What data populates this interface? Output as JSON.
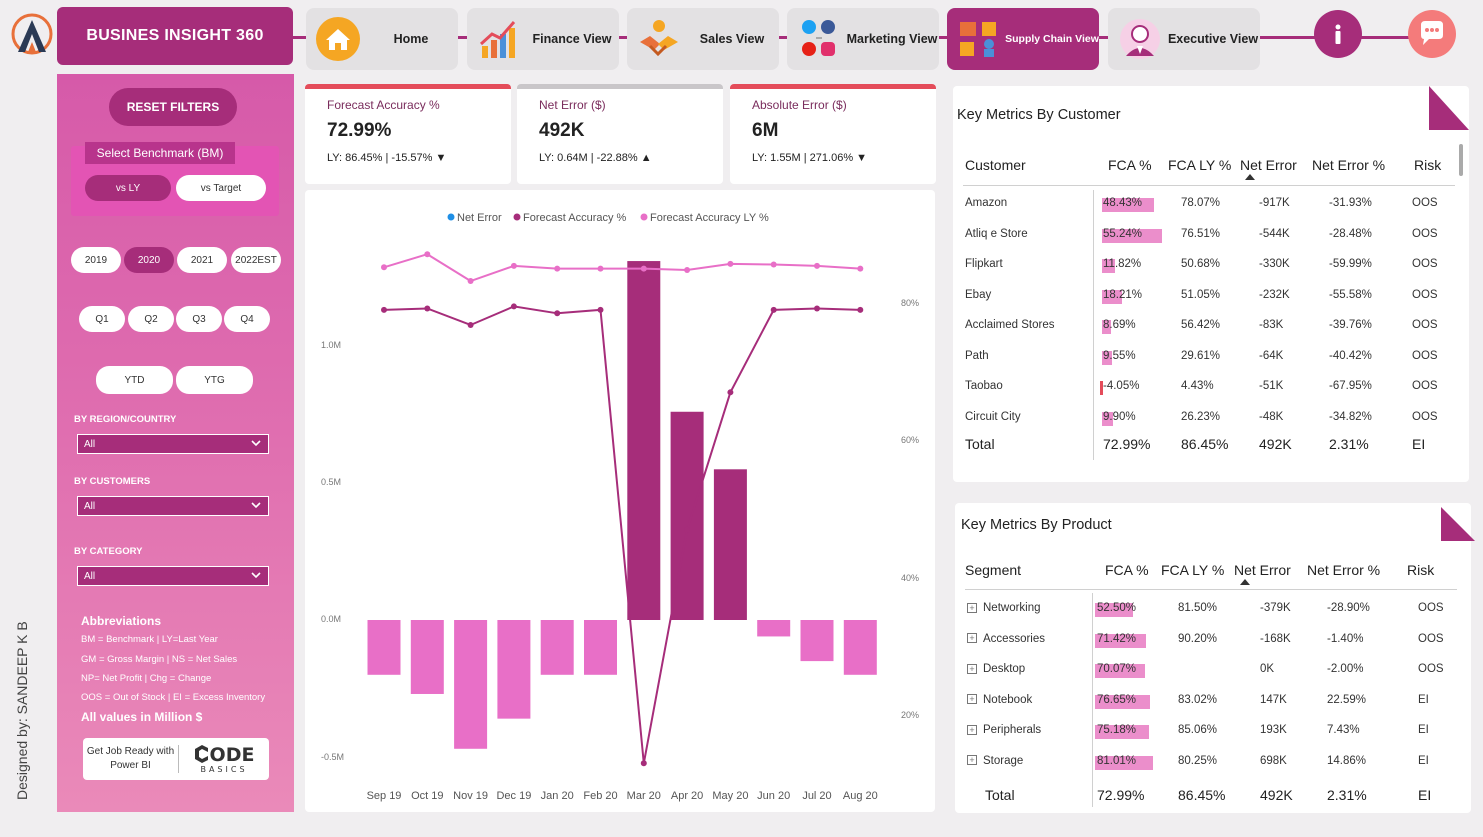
{
  "header": {
    "title": "BUSINES INSIGHT 360",
    "nav": [
      {
        "label": "Home",
        "icon": "home-icon"
      },
      {
        "label": "Finance View",
        "icon": "finance-chart-icon"
      },
      {
        "label": "Sales View",
        "icon": "handshake-icon"
      },
      {
        "label": "Marketing View",
        "icon": "social-media-icon"
      },
      {
        "label": "Supply Chain View",
        "icon": "supply-chain-icon",
        "active": true
      },
      {
        "label": "Executive View",
        "icon": "executive-icon"
      }
    ]
  },
  "sidebar": {
    "reset": "RESET FILTERS",
    "benchmark_title": "Select Benchmark (BM)",
    "benchmark_options": [
      "vs LY",
      "vs Target"
    ],
    "years": [
      "2019",
      "2020",
      "2021",
      "2022EST"
    ],
    "quarters": [
      "Q1",
      "Q2",
      "Q3",
      "Q4"
    ],
    "periods": [
      "YTD",
      "YTG"
    ],
    "filters": [
      {
        "label": "BY REGION/COUNTRY",
        "value": "All"
      },
      {
        "label": "BY CUSTOMERS",
        "value": "All"
      },
      {
        "label": "BY CATEGORY",
        "value": "All"
      }
    ],
    "abbr_title": "Abbreviations",
    "abbreviations": [
      "BM = Benchmark | LY=Last Year",
      "GM = Gross Margin | NS = Net Sales",
      "NP= Net Profit | Chg = Change",
      "OOS = Out of Stock | EI = Excess Inventory"
    ],
    "all_values": "All values in Million $",
    "promo_left": "Get Job Ready with Power BI",
    "promo_brand_top": "ODE",
    "promo_brand_bottom": "BASICS",
    "designed_by": "Designed by: SANDEEP K B"
  },
  "kpis": [
    {
      "title": "Forecast Accuracy %",
      "value": "72.99%",
      "sub": "LY: 86.45% | -15.57% ▼",
      "accent": "#e44c5a"
    },
    {
      "title": "Net Error ($)",
      "value": "492K",
      "sub": "LY: 0.64M | -22.88% ▲",
      "accent": "#c9c6c9"
    },
    {
      "title": "Absolute Error ($)",
      "value": "6M",
      "sub": "LY: 1.55M | 271.06% ▼",
      "accent": "#e44c5a"
    }
  ],
  "chart_data": {
    "type": "bar",
    "legend": [
      "Net Error",
      "Forecast Accuracy %",
      "Forecast Accuracy LY %"
    ],
    "legend_colors": [
      "#1f8fe6",
      "#a62d7a",
      "#e86fc7"
    ],
    "categories": [
      "Sep 19",
      "Oct 19",
      "Nov 19",
      "Dec 19",
      "Jan 20",
      "Feb 20",
      "Mar 20",
      "Apr 20",
      "May 20",
      "Jun 20",
      "Jul 20",
      "Aug 20"
    ],
    "y_left_ticks": [
      "1.0M",
      "0.5M",
      "0.0M",
      "-0.5M"
    ],
    "y_right_ticks": [
      "80%",
      "60%",
      "40%",
      "20%"
    ],
    "y_left_range": [
      -0.5,
      1.0
    ],
    "y_right_range": [
      20,
      80
    ],
    "net_error": [
      -0.2,
      -0.27,
      -0.47,
      -0.36,
      -0.2,
      -0.2,
      1.31,
      0.76,
      0.55,
      -0.06,
      -0.15,
      -0.2
    ],
    "forecast_accuracy": [
      79,
      79.2,
      76.8,
      79.5,
      78.5,
      79,
      13,
      47,
      67,
      79,
      79.2,
      79
    ],
    "forecast_accuracy_ly": [
      85.2,
      87.1,
      83.2,
      85.4,
      85,
      85,
      85,
      84.8,
      85.7,
      85.6,
      85.4,
      85
    ],
    "series_colors": {
      "positive": "#a62d7a",
      "negative": "#e86fc7"
    }
  },
  "customer_table": {
    "title": "Key Metrics By Customer",
    "columns": [
      "Customer",
      "FCA %",
      "FCA LY %",
      "Net Error",
      "Net Error %",
      "Risk"
    ],
    "rows": [
      {
        "name": "Amazon",
        "fca": "48.43%",
        "fca_v": 48.43,
        "ly": "78.07%",
        "ne": "-917K",
        "nep": "-31.93%",
        "risk": "OOS"
      },
      {
        "name": "Atliq e Store",
        "fca": "55.24%",
        "fca_v": 55.24,
        "ly": "76.51%",
        "ne": "-544K",
        "nep": "-28.48%",
        "risk": "OOS"
      },
      {
        "name": "Flipkart",
        "fca": "11.82%",
        "fca_v": 11.82,
        "ly": "50.68%",
        "ne": "-330K",
        "nep": "-59.99%",
        "risk": "OOS"
      },
      {
        "name": "Ebay",
        "fca": "18.21%",
        "fca_v": 18.21,
        "ly": "51.05%",
        "ne": "-232K",
        "nep": "-55.58%",
        "risk": "OOS"
      },
      {
        "name": "Acclaimed Stores",
        "fca": "8.69%",
        "fca_v": 8.69,
        "ly": "56.42%",
        "ne": "-83K",
        "nep": "-39.76%",
        "risk": "OOS"
      },
      {
        "name": "Path",
        "fca": "9.55%",
        "fca_v": 9.55,
        "ly": "29.61%",
        "ne": "-64K",
        "nep": "-40.42%",
        "risk": "OOS"
      },
      {
        "name": "Taobao",
        "fca": "-4.05%",
        "fca_v": -4.05,
        "ly": "4.43%",
        "ne": "-51K",
        "nep": "-67.95%",
        "risk": "OOS"
      },
      {
        "name": "Circuit City",
        "fca": "9.90%",
        "fca_v": 9.9,
        "ly": "26.23%",
        "ne": "-48K",
        "nep": "-34.82%",
        "risk": "OOS"
      }
    ],
    "total": {
      "name": "Total",
      "fca": "72.99%",
      "ly": "86.45%",
      "ne": "492K",
      "nep": "2.31%",
      "risk": "EI"
    }
  },
  "product_table": {
    "title": "Key Metrics By Product",
    "columns": [
      "Segment",
      "FCA %",
      "FCA LY %",
      "Net Error",
      "Net Error %",
      "Risk"
    ],
    "rows": [
      {
        "name": "Networking",
        "fca": "52.50%",
        "fca_v": 52.5,
        "ly": "81.50%",
        "ne": "-379K",
        "nep": "-28.90%",
        "risk": "OOS"
      },
      {
        "name": "Accessories",
        "fca": "71.42%",
        "fca_v": 71.42,
        "ly": "90.20%",
        "ne": "-168K",
        "nep": "-1.40%",
        "risk": "OOS"
      },
      {
        "name": "Desktop",
        "fca": "70.07%",
        "fca_v": 70.07,
        "ly": "",
        "ne": "0K",
        "nep": "-2.00%",
        "risk": "OOS"
      },
      {
        "name": "Notebook",
        "fca": "76.65%",
        "fca_v": 76.65,
        "ly": "83.02%",
        "ne": "147K",
        "nep": "22.59%",
        "risk": "EI"
      },
      {
        "name": "Peripherals",
        "fca": "75.18%",
        "fca_v": 75.18,
        "ly": "85.06%",
        "ne": "193K",
        "nep": "7.43%",
        "risk": "EI"
      },
      {
        "name": "Storage",
        "fca": "81.01%",
        "fca_v": 81.01,
        "ly": "80.25%",
        "ne": "698K",
        "nep": "14.86%",
        "risk": "EI"
      }
    ],
    "total": {
      "name": "Total",
      "fca": "72.99%",
      "ly": "86.45%",
      "ne": "492K",
      "nep": "2.31%",
      "risk": "EI"
    }
  }
}
